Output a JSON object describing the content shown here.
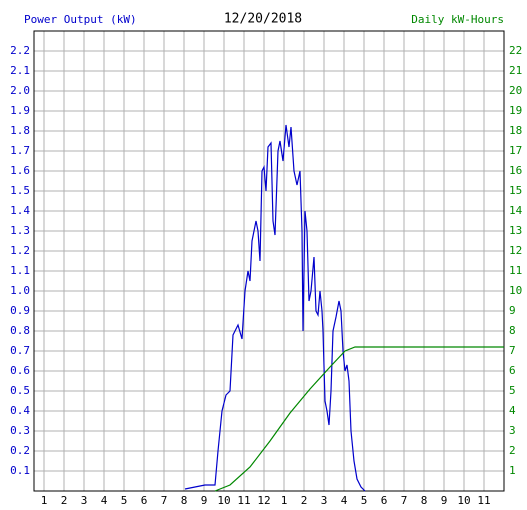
{
  "chart_data": {
    "type": "line",
    "title": "12/20/2018",
    "y_label": "Power Output (kW)",
    "y2_label": "Daily kW-Hours",
    "xlim": [
      0.5,
      24
    ],
    "xticks": [
      1,
      2,
      3,
      4,
      5,
      6,
      7,
      8,
      9,
      10,
      11,
      12,
      {
        "value": 13,
        "label": "1"
      },
      {
        "value": 14,
        "label": "2"
      },
      {
        "value": 15,
        "label": "3"
      },
      {
        "value": 16,
        "label": "4"
      },
      {
        "value": 17,
        "label": "5"
      },
      {
        "value": 18,
        "label": "6"
      },
      {
        "value": 19,
        "label": "7"
      },
      {
        "value": 20,
        "label": "8"
      },
      {
        "value": 21,
        "label": "9"
      },
      {
        "value": 22,
        "label": "10"
      },
      {
        "value": 23,
        "label": "11"
      }
    ],
    "ylim": [
      0,
      2.3
    ],
    "yticks": [
      0.1,
      0.2,
      0.3,
      0.4,
      0.5,
      0.6,
      0.7,
      0.8,
      0.9,
      {
        "value": 1,
        "label": "1.0"
      },
      1.1,
      1.2,
      1.3,
      1.4,
      1.5,
      1.6,
      1.7,
      1.8,
      1.9,
      {
        "value": 2,
        "label": "2.0"
      },
      2.1,
      2.2
    ],
    "y2lim": [
      0,
      23
    ],
    "y2ticks": [
      1,
      2,
      3,
      4,
      5,
      6,
      7,
      8,
      9,
      10,
      11,
      12,
      13,
      14,
      15,
      16,
      17,
      18,
      19,
      20,
      21,
      22
    ],
    "grid": true,
    "series": [
      {
        "name": "Power Output (kW)",
        "color": "#0000cc",
        "x": [
          8.05,
          8.55,
          9.05,
          9.55,
          9.7,
          9.9,
          10.1,
          10.3,
          10.45,
          10.7,
          10.9,
          11.05,
          11.2,
          11.3,
          11.4,
          11.6,
          11.7,
          11.8,
          11.9,
          12.0,
          12.1,
          12.2,
          12.35,
          12.45,
          12.55,
          12.7,
          12.8,
          12.95,
          13.1,
          13.25,
          13.35,
          13.5,
          13.65,
          13.8,
          13.9,
          13.95,
          14.05,
          14.15,
          14.25,
          14.35,
          14.5,
          14.6,
          14.7,
          14.8,
          14.9,
          14.95,
          15.05,
          15.15,
          15.25,
          15.35,
          15.45,
          15.6,
          15.75,
          15.85,
          15.95,
          16.05,
          16.15,
          16.25,
          16.35,
          16.5,
          16.65,
          16.85,
          17.05
        ],
        "values": [
          0.01,
          0.02,
          0.03,
          0.03,
          0.2,
          0.4,
          0.48,
          0.5,
          0.78,
          0.83,
          0.76,
          1.0,
          1.1,
          1.05,
          1.25,
          1.35,
          1.3,
          1.15,
          1.6,
          1.62,
          1.5,
          1.72,
          1.74,
          1.35,
          1.28,
          1.7,
          1.75,
          1.65,
          1.83,
          1.72,
          1.82,
          1.6,
          1.53,
          1.6,
          1.3,
          0.8,
          1.4,
          1.3,
          0.95,
          1.0,
          1.17,
          0.9,
          0.88,
          1.0,
          0.9,
          0.8,
          0.45,
          0.4,
          0.33,
          0.5,
          0.8,
          0.87,
          0.95,
          0.9,
          0.7,
          0.6,
          0.63,
          0.55,
          0.3,
          0.15,
          0.06,
          0.02,
          0
        ]
      },
      {
        "name": "Daily kW-Hours",
        "color": "#008800",
        "axis": "y2",
        "x": [
          9.55,
          10.3,
          11.3,
          12.3,
          13.3,
          14.3,
          15.3,
          16.05,
          16.55,
          24
        ],
        "values": [
          0,
          0.3,
          1.2,
          2.5,
          3.9,
          5.1,
          6.2,
          7.0,
          7.2,
          7.2
        ]
      }
    ]
  }
}
